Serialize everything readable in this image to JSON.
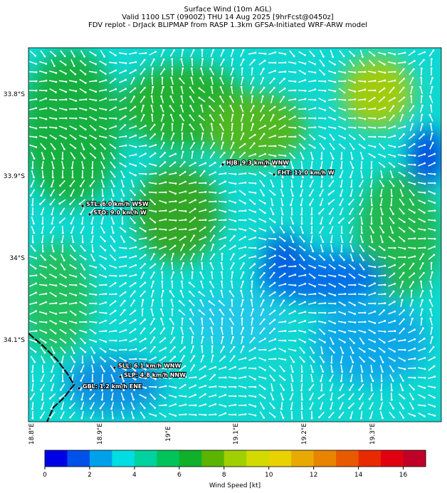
{
  "header": {
    "title_lines": [
      "Surface Wind (10m AGL)",
      "Valid 1100 LST (0900Z) THU 14 Aug 2025 [9hrFcst@0450z]",
      "FDV replot - DrJack BLIPMAP from RASP 1.3km GFSA-Initiated WRF-ARW model"
    ]
  },
  "map": {
    "lat_labels": [
      "33.8°S",
      "33.9°S",
      "34°S",
      "34.1°S"
    ],
    "lon_labels": [
      "18.8°E",
      "18.9°E",
      "19°E",
      "19.1°E",
      "19.2°E",
      "19.3°E"
    ],
    "stations": [
      {
        "label": "HJB: 9.3 km/h WNW"
      },
      {
        "label": "FHT: 11.0 km/h W"
      },
      {
        "label": "STL: 6.0 km/h WSW"
      },
      {
        "label": "STO: 9.0 km/h W"
      },
      {
        "label": "SLL: 6.1 km/h WNW"
      },
      {
        "label": "SLP: 4.8 km/h NNW"
      },
      {
        "label": "GBL: 1.2 km/h ENE"
      }
    ]
  },
  "colorbar": {
    "label": "Wind Speed [kt]",
    "lim": [
      0,
      17
    ],
    "ticks": [
      0,
      2,
      4,
      6,
      8,
      10,
      12,
      14,
      16
    ],
    "colors": [
      "#0000e6",
      "#0050ea",
      "#00a0ea",
      "#00dde3",
      "#00d2a0",
      "#00c35a",
      "#10b02a",
      "#5ab400",
      "#a0d000",
      "#d2da00",
      "#e8d200",
      "#e8aa00",
      "#e88400",
      "#e85a00",
      "#e82a00",
      "#e00010",
      "#c00028"
    ]
  }
}
